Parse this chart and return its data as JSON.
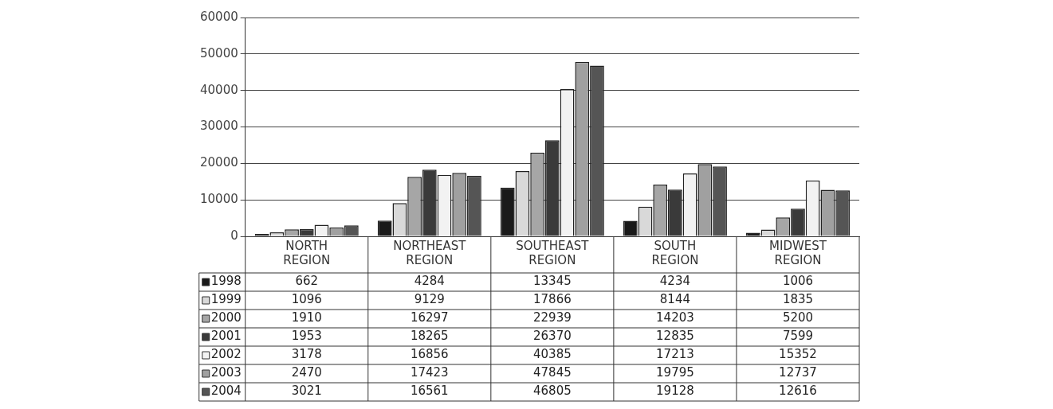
{
  "chart_data": {
    "type": "bar",
    "categories": [
      "NORTH REGION",
      "NORTHEAST REGION",
      "SOUTHEAST REGION",
      "SOUTH REGION",
      "MIDWEST REGION"
    ],
    "series": [
      {
        "name": "1998",
        "color": "#1a1a1a",
        "values": [
          662,
          4284,
          13345,
          4234,
          1006
        ]
      },
      {
        "name": "1999",
        "color": "#d9d9d9",
        "values": [
          1096,
          9129,
          17866,
          8144,
          1835
        ]
      },
      {
        "name": "2000",
        "color": "#a6a6a6",
        "values": [
          1910,
          16297,
          22939,
          14203,
          5200
        ]
      },
      {
        "name": "2001",
        "color": "#3a3a3a",
        "values": [
          1953,
          18265,
          26370,
          12835,
          7599
        ]
      },
      {
        "name": "2002",
        "color": "#f2f2f2",
        "values": [
          3178,
          16856,
          40385,
          17213,
          15352
        ]
      },
      {
        "name": "2003",
        "color": "#a0a0a0",
        "values": [
          2470,
          17423,
          47845,
          19795,
          12737
        ]
      },
      {
        "name": "2004",
        "color": "#555555",
        "values": [
          3021,
          16561,
          46805,
          19128,
          12616
        ]
      }
    ],
    "ylim": [
      0,
      60000
    ],
    "yticks": [
      0,
      10000,
      20000,
      30000,
      40000,
      50000,
      60000
    ],
    "grid": "y",
    "legend": "bottom left",
    "data_labels": true
  }
}
